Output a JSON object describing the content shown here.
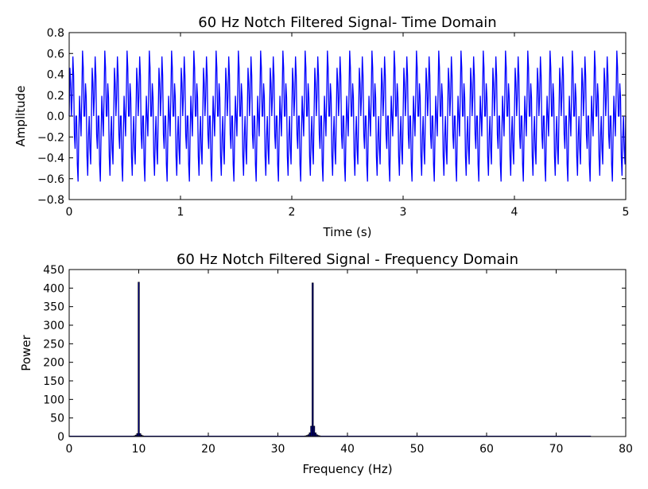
{
  "chart_data": [
    {
      "type": "line",
      "title": "60 Hz Notch Filtered Signal- Time Domain",
      "xlabel": "Time (s)",
      "ylabel": "Amplitude",
      "xlim": [
        0,
        5
      ],
      "ylim": [
        -0.8,
        0.8
      ],
      "xticks": [
        "0",
        "1",
        "2",
        "3",
        "4",
        "5"
      ],
      "yticks": [
        "−0.8",
        "−0.6",
        "−0.4",
        "−0.2",
        "0.0",
        "0.2",
        "0.4",
        "0.6",
        "0.8"
      ],
      "line_color": "#0000ff",
      "series": [
        {
          "components": [
            {
              "frequency_hz": 10,
              "amplitude": 0.33
            },
            {
              "frequency_hz": 35,
              "amplitude": 0.33
            }
          ],
          "sample_rate_hz": 150,
          "t_start": 0,
          "t_end": 5
        }
      ]
    },
    {
      "type": "bar",
      "title": "60 Hz Notch Filtered Signal - Frequency Domain",
      "xlabel": "Frequency (Hz)",
      "ylabel": "Power",
      "xlim": [
        0,
        80
      ],
      "ylim": [
        0,
        450
      ],
      "xticks": [
        "0",
        "10",
        "20",
        "30",
        "40",
        "50",
        "60",
        "70",
        "80"
      ],
      "yticks": [
        "0",
        "50",
        "100",
        "150",
        "200",
        "250",
        "300",
        "350",
        "400",
        "450"
      ],
      "bar_color": "#000080",
      "bar_width_hz": 0.2,
      "series": [
        {
          "x": [
            9.4,
            9.6,
            9.8,
            10.0,
            10.2,
            10.4,
            10.6,
            34.0,
            34.2,
            34.4,
            34.6,
            34.8,
            35.0,
            35.2,
            35.4,
            35.6,
            35.8,
            36.0
          ],
          "values": [
            2,
            4,
            8,
            416,
            8,
            4,
            2,
            2,
            3,
            5,
            10,
            28,
            414,
            28,
            10,
            5,
            3,
            2
          ]
        }
      ]
    }
  ]
}
